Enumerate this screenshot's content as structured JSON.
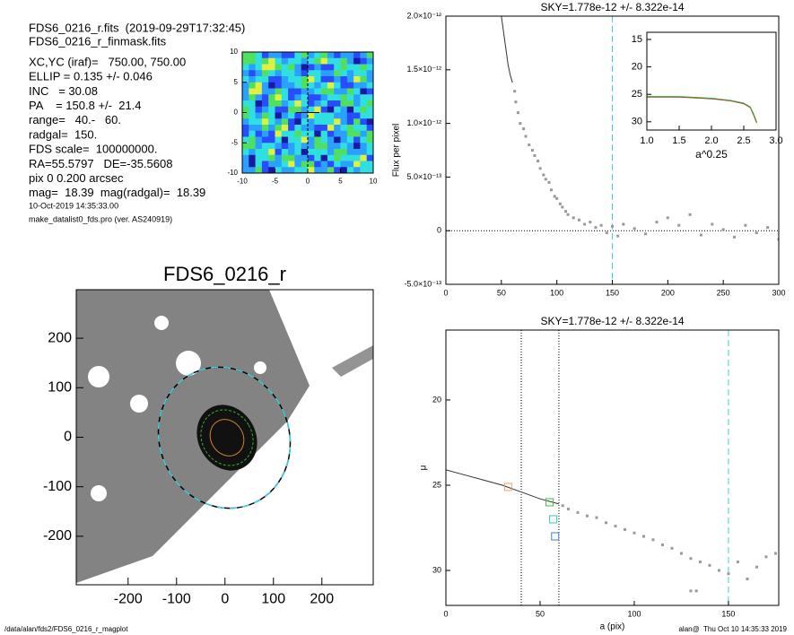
{
  "info": {
    "lines": [
      "FDS6_0216_r.fits  (2019-09-29T17:32:45)",
      "FDS6_0216_r_finmask.fits"
    ],
    "params": [
      "XC,YC (iraf)=   750.00, 750.00",
      "ELLIP = 0.135 +/- 0.046",
      "INC   = 30.08",
      "PA    = 150.8 +/-  21.4",
      "range=   40.-   60.",
      "radgal=  150.",
      "FDS scale=  100000000.",
      "RA=55.5797   DE=-35.5608",
      "pix 0 0.200 arcsec",
      "mag=  18.39  mag(radgal)=  18.39"
    ],
    "date": "10-Oct-2019 14:35:33.00",
    "program": "make_datalist0_fds.pro (ver. AS240919)"
  },
  "footer": {
    "path": "/data/alan/fds2/FDS6_0216_r_magplot",
    "stamp": "alan@  Thu Oct 10 14:35:33 2019"
  },
  "chart_data": [
    {
      "type": "scatter",
      "title": "SKY=1.778e-12 +/- 8.322e-14",
      "y_label": "Flux per pixel",
      "x": [
        62,
        63,
        65,
        67,
        70,
        72,
        75,
        78,
        80,
        83,
        85,
        88,
        90,
        93,
        95,
        98,
        100,
        103,
        105,
        108,
        110,
        115,
        120,
        125,
        130,
        135,
        140,
        145,
        150,
        155,
        160,
        170,
        180,
        190,
        200,
        210,
        220,
        230,
        240,
        250,
        260,
        270,
        280,
        290,
        300
      ],
      "y": [
        1.3e-12,
        1.2e-12,
        1.1e-12,
        1e-12,
        9.5e-13,
        8.8e-13,
        8e-13,
        7.5e-13,
        7e-13,
        6.5e-13,
        5.8e-13,
        5.2e-13,
        4.8e-13,
        4.5e-13,
        3.8e-13,
        3.2e-13,
        3e-13,
        2.5e-13,
        2.2e-13,
        1.8e-13,
        1.5e-13,
        1.2e-13,
        1e-13,
        6e-14,
        8e-14,
        3e-14,
        5e-14,
        -2e-14,
        4e-14,
        -5e-14,
        6e-14,
        2e-14,
        -3e-14,
        8e-14,
        1.2e-13,
        5e-14,
        1.5e-13,
        -4e-14,
        6e-14,
        1e-14,
        -6e-14,
        5e-14,
        -2e-14,
        3e-14,
        -8e-14
      ],
      "line": {
        "x": [
          50,
          52,
          54,
          56,
          58,
          60
        ],
        "y": [
          2e-12,
          1.85e-12,
          1.7e-12,
          1.55e-12,
          1.45e-12,
          1.38e-12
        ]
      },
      "xlim": [
        0,
        300
      ],
      "ylim": [
        -5e-13,
        2e-12
      ],
      "xticks": [
        0,
        50,
        100,
        150,
        200,
        250,
        300
      ],
      "yticks": [
        {
          "value": -5e-13,
          "label": "-5.0×10⁻¹³"
        },
        {
          "value": 0,
          "label": "0"
        },
        {
          "value": 5e-13,
          "label": "5.0×10⁻¹³"
        },
        {
          "value": 1e-12,
          "label": "1.0×10⁻¹²"
        },
        {
          "value": 1.5e-12,
          "label": "1.5×10⁻¹²"
        },
        {
          "value": 2e-12,
          "label": "2.0×10⁻¹²"
        }
      ],
      "x_dashed": [
        150
      ],
      "y_dotted": [
        0
      ]
    },
    {
      "type": "line",
      "x_label": "a^0.25",
      "y_inverted": true,
      "series": [
        {
          "color": "#d02020",
          "x": [
            1.0,
            1.5,
            2.0,
            2.3,
            2.5,
            2.6,
            2.65,
            2.7
          ],
          "y": [
            25.5,
            25.5,
            25.8,
            26.2,
            26.7,
            27.4,
            28.7,
            30.2
          ]
        },
        {
          "color": "#30b030",
          "x": [
            1.0,
            1.5,
            2.0,
            2.3,
            2.5,
            2.6,
            2.65,
            2.7
          ],
          "y": [
            25.4,
            25.4,
            25.7,
            26.1,
            26.6,
            27.3,
            28.5,
            30
          ]
        }
      ],
      "xlim": [
        1,
        3
      ],
      "ylim": [
        13.7,
        31.5
      ],
      "xticks": [
        {
          "value": 1,
          "label": "1.0"
        },
        {
          "value": 1.5,
          "label": "1.5"
        },
        {
          "value": 2,
          "label": "2.0"
        },
        {
          "value": 2.5,
          "label": "2.5"
        },
        {
          "value": 3,
          "label": "3.0"
        }
      ],
      "yticks": [
        15,
        20,
        25,
        30
      ]
    },
    {
      "type": "scatter",
      "title": "SKY=1.778e-12 +/- 8.322e-14",
      "x_label": "a (pix)",
      "y_label": "μ",
      "y_inverted": true,
      "x": [
        62,
        65,
        70,
        75,
        80,
        85,
        90,
        95,
        100,
        105,
        110,
        115,
        120,
        125,
        130,
        135,
        140,
        145,
        150,
        155,
        160,
        165,
        170,
        175,
        130,
        133
      ],
      "y": [
        26.2,
        26.4,
        26.6,
        26.8,
        26.9,
        27.2,
        27.4,
        27.6,
        27.8,
        28.0,
        28.2,
        28.5,
        28.7,
        29.0,
        29.3,
        29.5,
        29.7,
        30.0,
        30.2,
        29.5,
        30.5,
        29.8,
        29.2,
        29.0,
        31.2,
        31.2
      ],
      "line": {
        "x": [
          0,
          10,
          20,
          30,
          40,
          50,
          60
        ],
        "y": [
          24.1,
          24.4,
          24.7,
          25.0,
          25.4,
          25.8,
          26.1
        ]
      },
      "markers": [
        {
          "x": 33,
          "y": 25.1,
          "color": "#f0a060"
        },
        {
          "x": 55,
          "y": 26.0,
          "color": "#40c040"
        },
        {
          "x": 57,
          "y": 27.0,
          "color": "#40c0c0"
        },
        {
          "x": 58,
          "y": 28.0,
          "color": "#4080d0"
        }
      ],
      "xlim": [
        0,
        176.7
      ],
      "ylim": [
        15.9,
        32.05
      ],
      "xticks": [
        0,
        50,
        100,
        150
      ],
      "yticks": [
        20,
        25,
        30
      ],
      "x_dotted": [
        40,
        60
      ],
      "x_dashed": [
        150
      ]
    },
    {
      "type": "image",
      "title": "FDS6_0216_r",
      "xlim": [
        -307,
        306
      ],
      "ylim": [
        -298,
        298
      ],
      "xticks": [
        -200,
        -100,
        0,
        100,
        200
      ],
      "yticks": [
        -200,
        -100,
        0,
        100,
        200
      ]
    },
    {
      "type": "contour",
      "xlim": [
        -10,
        10
      ],
      "ylim": [
        -10,
        10
      ],
      "xticks": [
        -10,
        -5,
        0,
        5,
        10
      ],
      "yticks": [
        -10,
        -5,
        0,
        5,
        10
      ]
    }
  ]
}
